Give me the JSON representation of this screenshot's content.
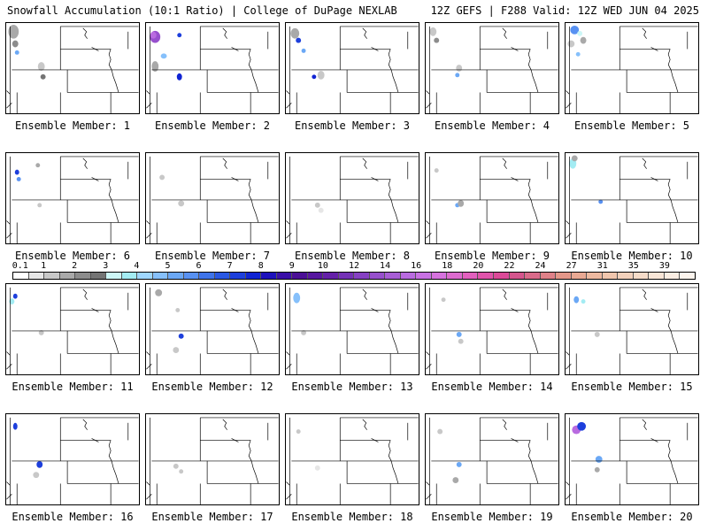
{
  "header": {
    "left_title": "Snowfall Accumulation (10:1 Ratio) | College of DuPage NEXLAB",
    "right_title": "12Z GEFS | F288 Valid: 12Z WED JUN 04 2025"
  },
  "panel_label_prefix": "Ensemble Member: ",
  "members": [
    {
      "number": "1",
      "label": "Ensemble Member: 1"
    },
    {
      "number": "2",
      "label": "Ensemble Member: 2"
    },
    {
      "number": "3",
      "label": "Ensemble Member: 3"
    },
    {
      "number": "4",
      "label": "Ensemble Member: 4"
    },
    {
      "number": "5",
      "label": "Ensemble Member: 5"
    },
    {
      "number": "6",
      "label": "Ensemble Member: 6"
    },
    {
      "number": "7",
      "label": "Ensemble Member: 7"
    },
    {
      "number": "8",
      "label": "Ensemble Member: 8"
    },
    {
      "number": "9",
      "label": "Ensemble Member: 9"
    },
    {
      "number": "10",
      "label": "Ensemble Member: 10"
    },
    {
      "number": "11",
      "label": "Ensemble Member: 11"
    },
    {
      "number": "12",
      "label": "Ensemble Member: 12"
    },
    {
      "number": "13",
      "label": "Ensemble Member: 13"
    },
    {
      "number": "14",
      "label": "Ensemble Member: 14"
    },
    {
      "number": "15",
      "label": "Ensemble Member: 15"
    },
    {
      "number": "16",
      "label": "Ensemble Member: 16"
    },
    {
      "number": "17",
      "label": "Ensemble Member: 17"
    },
    {
      "number": "18",
      "label": "Ensemble Member: 18"
    },
    {
      "number": "19",
      "label": "Ensemble Member: 19"
    },
    {
      "number": "20",
      "label": "Ensemble Member: 20"
    }
  ],
  "colorbar": {
    "labels": [
      "0.1",
      "1",
      "2",
      "3",
      "4",
      "5",
      "6",
      "7",
      "8",
      "9",
      "10",
      "12",
      "14",
      "16",
      "18",
      "20",
      "22",
      "24",
      "27",
      "31",
      "35",
      "39"
    ],
    "colors": [
      "#ffffff",
      "#e6e6e6",
      "#c8c8c8",
      "#a9a9a9",
      "#8c8c8c",
      "#747474",
      "#cdf7f7",
      "#a3ecf3",
      "#9fd7ff",
      "#86c0fb",
      "#6ba8f5",
      "#5891f2",
      "#3f74ea",
      "#2a58e3",
      "#1d3fdc",
      "#1024d3",
      "#1e12bc",
      "#3a0fa8",
      "#4b0f96",
      "#56169f",
      "#6420a8",
      "#7432b6",
      "#8641c3",
      "#9750cd",
      "#a85ed6",
      "#b96be0",
      "#c871e3",
      "#d672de",
      "#dd6bcf",
      "#e260be",
      "#e054ab",
      "#db4a98",
      "#d5558d",
      "#da6b8a",
      "#df8188",
      "#e49789",
      "#e9a993",
      "#eeb9a0",
      "#f1c6ad",
      "#f3d1bb",
      "#f6dcc9",
      "#f8e5d6",
      "#fbeee3",
      "#fdf5ee"
    ]
  }
}
